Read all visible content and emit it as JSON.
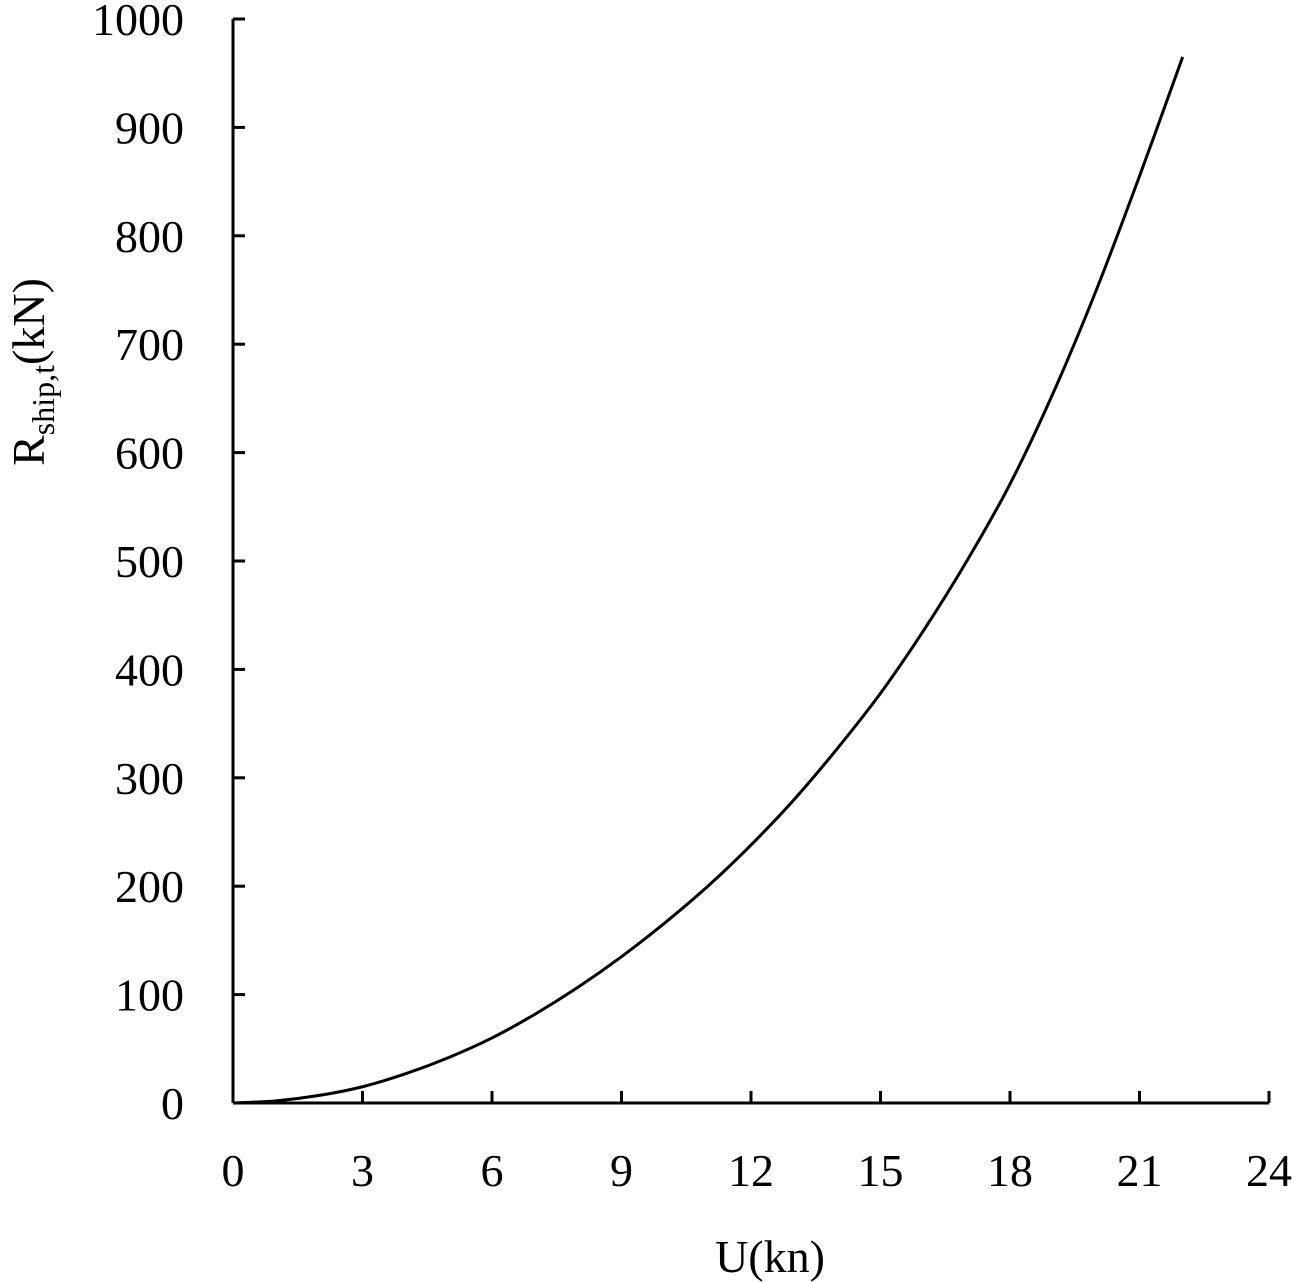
{
  "chart_data": {
    "type": "line",
    "title": "",
    "xlabel": "U(kn)",
    "ylabel": {
      "main": "R",
      "subscript": "ship,t",
      "unit": "(kN)"
    },
    "xlim": [
      0,
      24
    ],
    "ylim": [
      0,
      1000
    ],
    "x_ticks": [
      "0",
      "3",
      "6",
      "9",
      "12",
      "15",
      "18",
      "21",
      "24"
    ],
    "y_ticks": [
      "0",
      "100",
      "200",
      "300",
      "400",
      "500",
      "600",
      "700",
      "800",
      "900",
      "1000"
    ],
    "grid": false,
    "legend": "none",
    "series": [
      {
        "color": "#000000",
        "x": [
          0,
          1,
          2,
          3,
          4,
          5,
          6,
          7,
          8,
          9,
          10,
          11,
          12,
          13,
          14,
          15,
          16,
          17,
          18,
          19,
          20,
          21,
          22
        ],
        "y": [
          0,
          2,
          7,
          15,
          27,
          42,
          60,
          82,
          107,
          135,
          166,
          200,
          238,
          280,
          327,
          378,
          436,
          500,
          571,
          655,
          750,
          855,
          965
        ]
      }
    ]
  }
}
